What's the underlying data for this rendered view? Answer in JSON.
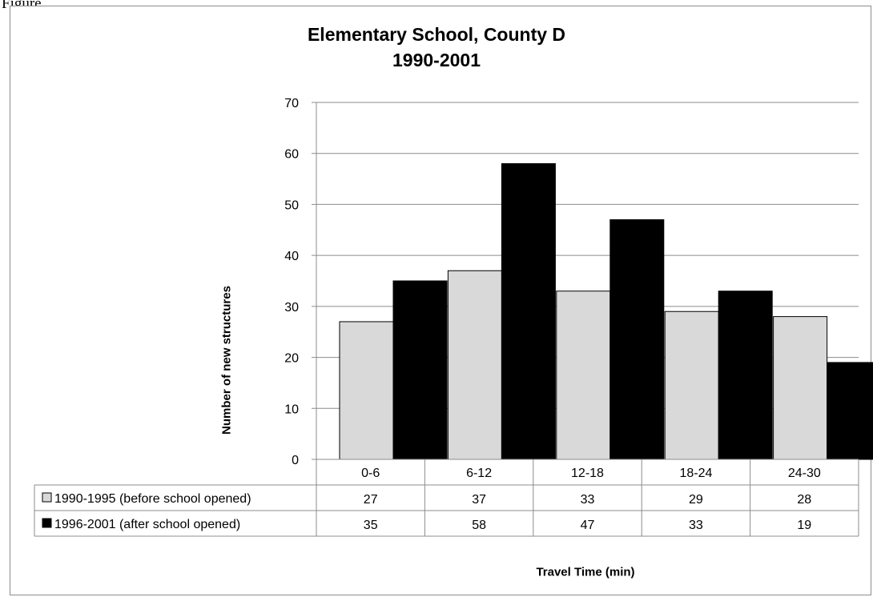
{
  "figure_label": "Figure",
  "chart_data": {
    "type": "bar",
    "title": [
      "Elementary School, County D",
      "1990-2001"
    ],
    "xlabel": "Travel Time  (min)",
    "ylabel": "Number of new structures",
    "categories": [
      "0-6",
      "6-12",
      "12-18",
      "18-24",
      "24-30"
    ],
    "series": [
      {
        "name": "1990-1995 (before school opened)",
        "color": "#d9d9d9",
        "values": [
          27,
          37,
          33,
          29,
          28
        ]
      },
      {
        "name": "1996-2001 (after school opened)",
        "color": "#000000",
        "values": [
          35,
          58,
          47,
          33,
          19
        ]
      }
    ],
    "ylim": [
      0,
      70
    ],
    "yticks": [
      0,
      10,
      20,
      30,
      40,
      50,
      60,
      70
    ],
    "grid": true,
    "legend": "data-table-left"
  }
}
